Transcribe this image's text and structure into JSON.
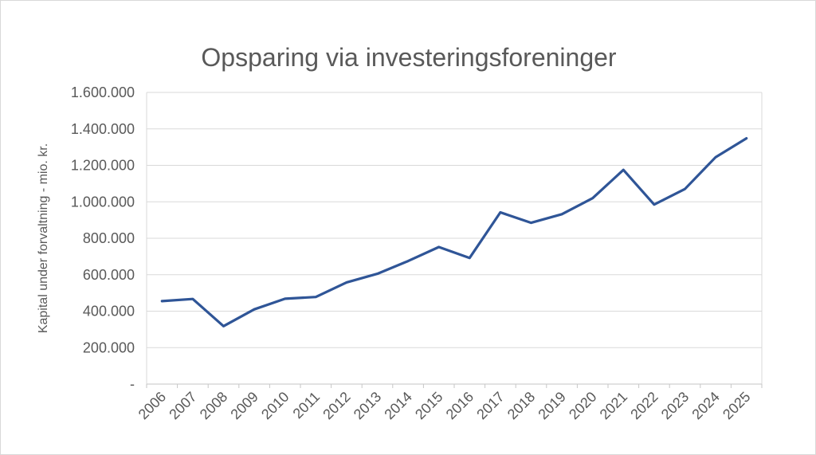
{
  "chart_data": {
    "type": "line",
    "title": "Opsparing via investeringsforeninger",
    "xlabel": "",
    "ylabel": "Kapital under forvaltning - mio. kr.",
    "categories": [
      "2006",
      "2007",
      "2008",
      "2009",
      "2010",
      "2011",
      "2012",
      "2013",
      "2014",
      "2015",
      "2016",
      "2017",
      "2018",
      "2019",
      "2020",
      "2021",
      "2022",
      "2023",
      "2024",
      "2025"
    ],
    "values": [
      455000,
      467000,
      318000,
      410000,
      468000,
      478000,
      558000,
      605000,
      675000,
      752000,
      692000,
      942000,
      885000,
      932000,
      1020000,
      1175000,
      985000,
      1070000,
      1245000,
      1348000
    ],
    "ylim": [
      0,
      1600000
    ],
    "y_tick_interval": 200000,
    "y_tick_labels_top_to_bottom": [
      "1.600.000",
      "1.400.000",
      "1.200.000",
      "1.000.000",
      "800.000",
      "600.000",
      "400.000",
      "200.000",
      "-"
    ],
    "grid": "horizontal",
    "legend": "none",
    "series_name": "Kapital under forvaltning"
  },
  "colors": {
    "line": "#2F5597",
    "title_text": "#595959",
    "tick_text": "#595959",
    "gridline": "#d9d9d9",
    "axis_line": "#c6c6c6",
    "background": "#ffffff",
    "frame_border": "#d9d9d9"
  }
}
